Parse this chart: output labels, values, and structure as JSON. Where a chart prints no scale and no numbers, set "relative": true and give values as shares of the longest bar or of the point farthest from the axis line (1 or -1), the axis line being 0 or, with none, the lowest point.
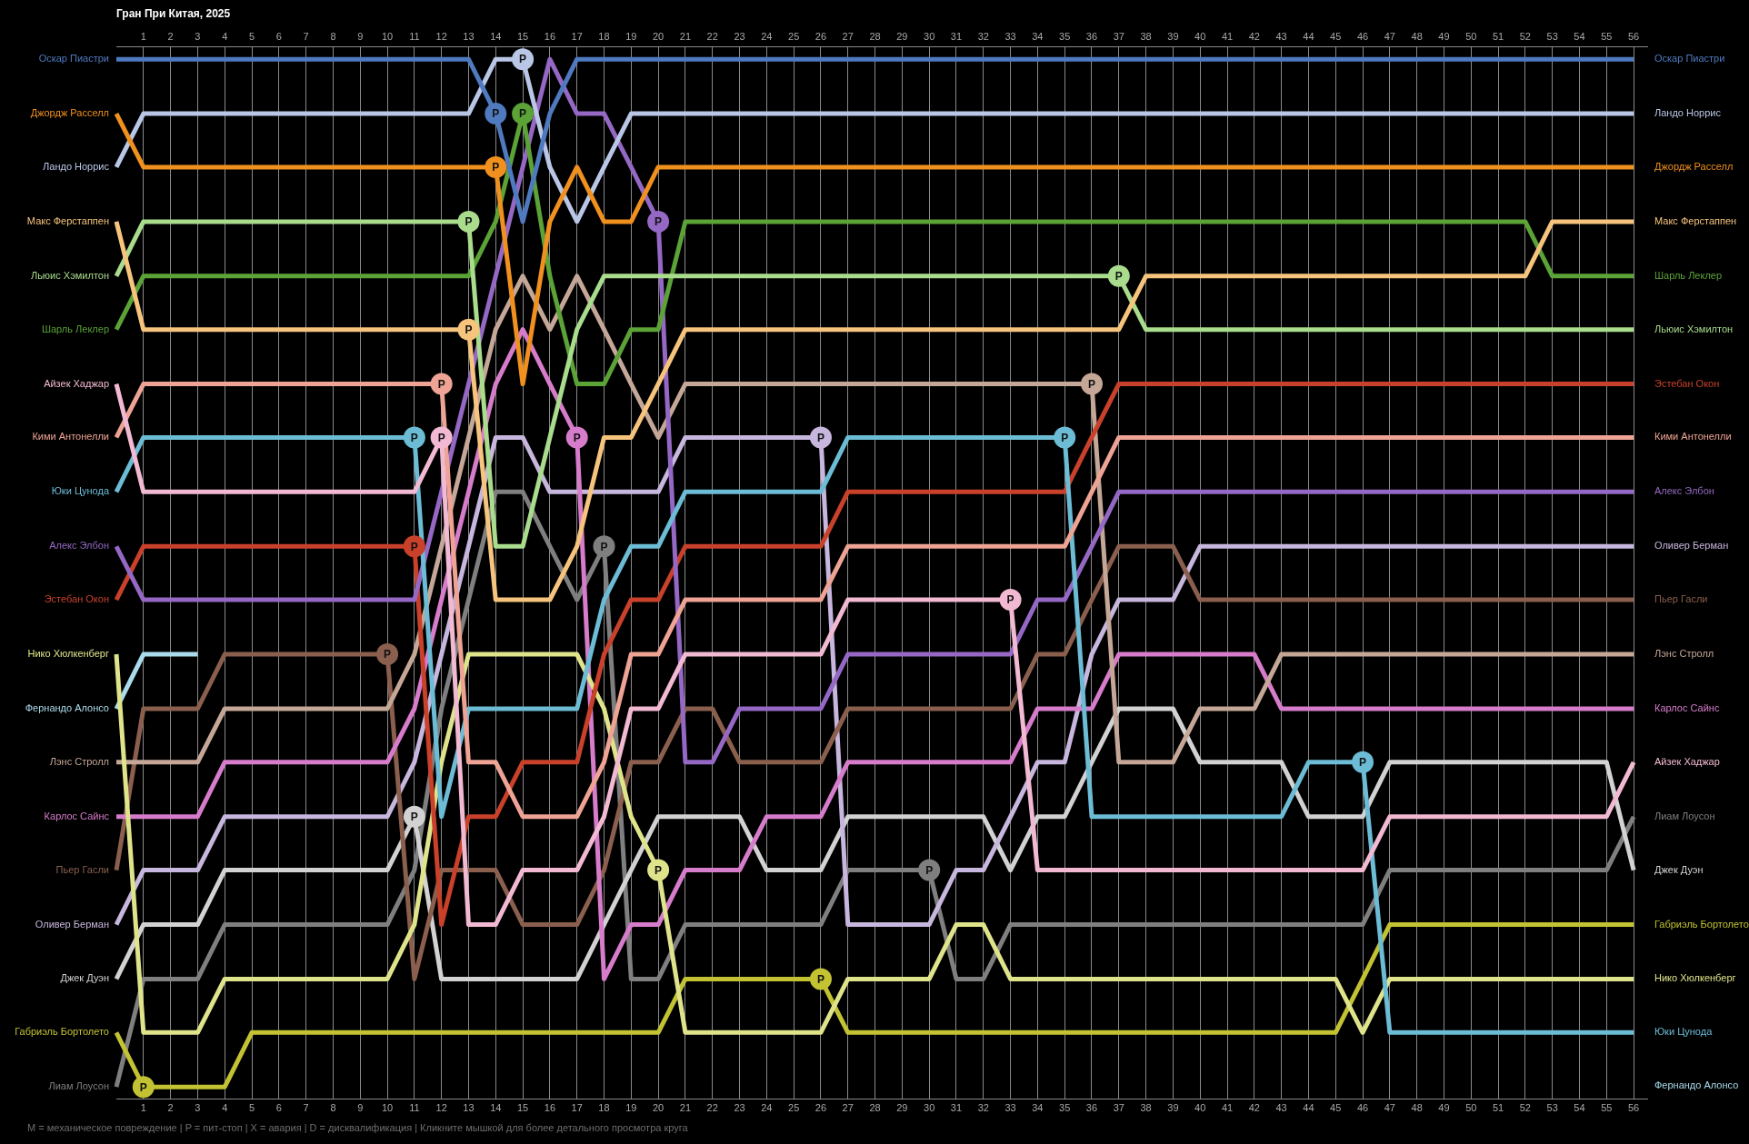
{
  "chart_data": {
    "type": "line",
    "title": "Гран При Китая, 2025",
    "relative": true,
    "x": [
      0,
      1,
      2,
      3,
      4,
      5,
      6,
      7,
      8,
      9,
      10,
      11,
      12,
      13,
      14,
      15,
      16,
      17,
      18,
      19,
      20,
      21,
      22,
      23,
      24,
      25,
      26,
      27,
      28,
      29,
      30,
      31,
      32,
      33,
      34,
      35,
      36,
      37,
      38,
      39,
      40,
      41,
      42,
      43,
      44,
      45,
      46,
      47,
      48,
      49,
      50,
      51,
      52,
      53,
      54,
      55,
      56
    ],
    "xlim": [
      0,
      56.5
    ],
    "xticks": [
      1,
      2,
      3,
      4,
      5,
      6,
      7,
      8,
      9,
      10,
      11,
      12,
      13,
      14,
      15,
      16,
      17,
      18,
      19,
      20,
      21,
      22,
      23,
      24,
      25,
      26,
      27,
      28,
      29,
      30,
      31,
      32,
      33,
      34,
      35,
      36,
      37,
      38,
      39,
      40,
      41,
      42,
      43,
      44,
      45,
      46,
      47,
      48,
      49,
      50,
      51,
      52,
      53,
      54,
      55,
      56
    ],
    "x2lim": [
      0,
      56.5
    ],
    "x2ticks": [
      1,
      2,
      3,
      4,
      5,
      6,
      7,
      8,
      9,
      10,
      11,
      12,
      13,
      14,
      15,
      16,
      17,
      18,
      19,
      20,
      21,
      22,
      23,
      24,
      25,
      26,
      27,
      28,
      29,
      30,
      31,
      32,
      33,
      34,
      35,
      36,
      37,
      38,
      39,
      40,
      41,
      42,
      43,
      44,
      45,
      46,
      47,
      48,
      49,
      50,
      51,
      52,
      53,
      54,
      55,
      56
    ],
    "grid": "x",
    "legend": false,
    "marker": "none",
    "line_style": "solid",
    "series": [
      {
        "name": "Оскар Пиастри",
        "color": "#4f7ac0",
        "values": [
          1,
          1,
          1,
          1,
          1,
          1,
          1,
          1,
          1,
          1,
          1,
          1,
          1,
          1,
          0.947,
          0.842,
          0.947,
          1,
          1,
          1,
          1,
          1,
          1,
          1,
          1,
          1,
          1,
          1,
          1,
          1,
          1,
          1,
          1,
          1,
          1,
          1,
          1,
          1,
          1,
          1,
          1,
          1,
          1,
          1,
          1,
          1,
          1,
          1,
          1,
          1,
          1,
          1,
          1,
          1,
          1,
          1,
          1
        ]
      },
      {
        "name": "Джордж Расселл",
        "color": "#f0901f",
        "values": [
          0.947,
          0.895,
          0.895,
          0.895,
          0.895,
          0.895,
          0.895,
          0.895,
          0.895,
          0.895,
          0.895,
          0.895,
          0.895,
          0.895,
          0.895,
          0.684,
          0.842,
          0.895,
          0.842,
          0.842,
          0.895,
          0.895,
          0.895,
          0.895,
          0.895,
          0.895,
          0.895,
          0.895,
          0.895,
          0.895,
          0.895,
          0.895,
          0.895,
          0.895,
          0.895,
          0.895,
          0.895,
          0.895,
          0.895,
          0.895,
          0.895,
          0.895,
          0.895,
          0.895,
          0.895,
          0.895,
          0.895,
          0.895,
          0.895,
          0.895,
          0.895,
          0.895,
          0.895,
          0.895,
          0.895,
          0.895,
          0.895
        ]
      },
      {
        "name": "Ландо Норрис",
        "color": "#b9c6e6",
        "values": [
          0.895,
          0.947,
          0.947,
          0.947,
          0.947,
          0.947,
          0.947,
          0.947,
          0.947,
          0.947,
          0.947,
          0.947,
          0.947,
          0.947,
          1,
          1,
          0.895,
          0.842,
          0.895,
          0.947,
          0.947,
          0.947,
          0.947,
          0.947,
          0.947,
          0.947,
          0.947,
          0.947,
          0.947,
          0.947,
          0.947,
          0.947,
          0.947,
          0.947,
          0.947,
          0.947,
          0.947,
          0.947,
          0.947,
          0.947,
          0.947,
          0.947,
          0.947,
          0.947,
          0.947,
          0.947,
          0.947,
          0.947,
          0.947,
          0.947,
          0.947,
          0.947,
          0.947,
          0.947,
          0.947,
          0.947,
          0.947
        ]
      },
      {
        "name": "Макс Ферстаппен",
        "color": "#f6c47d",
        "values": [
          0.842,
          0.737,
          0.737,
          0.737,
          0.737,
          0.737,
          0.737,
          0.737,
          0.737,
          0.737,
          0.737,
          0.737,
          0.737,
          0.737,
          0.474,
          0.474,
          0.474,
          0.526,
          0.632,
          0.632,
          0.684,
          0.737,
          0.737,
          0.737,
          0.737,
          0.737,
          0.737,
          0.737,
          0.737,
          0.737,
          0.737,
          0.737,
          0.737,
          0.737,
          0.737,
          0.737,
          0.737,
          0.737,
          0.789,
          0.789,
          0.789,
          0.789,
          0.789,
          0.789,
          0.789,
          0.789,
          0.789,
          0.789,
          0.789,
          0.789,
          0.789,
          0.789,
          0.789,
          0.842,
          0.842,
          0.842,
          0.842
        ]
      },
      {
        "name": "Льюис Хэмилтон",
        "color": "#a9dc8c",
        "values": [
          0.789,
          0.842,
          0.842,
          0.842,
          0.842,
          0.842,
          0.842,
          0.842,
          0.842,
          0.842,
          0.842,
          0.842,
          0.842,
          0.842,
          0.526,
          0.526,
          0.632,
          0.737,
          0.789,
          0.789,
          0.789,
          0.789,
          0.789,
          0.789,
          0.789,
          0.789,
          0.789,
          0.789,
          0.789,
          0.789,
          0.789,
          0.789,
          0.789,
          0.789,
          0.789,
          0.789,
          0.789,
          0.789,
          0.737,
          0.737,
          0.737,
          0.737,
          0.737,
          0.737,
          0.737,
          0.737,
          0.737,
          0.737,
          0.737,
          0.737,
          0.737,
          0.737,
          0.737,
          0.737,
          0.737,
          0.737,
          0.737
        ]
      },
      {
        "name": "Шарль Леклер",
        "color": "#5ba237",
        "values": [
          0.737,
          0.789,
          0.789,
          0.789,
          0.789,
          0.789,
          0.789,
          0.789,
          0.789,
          0.789,
          0.789,
          0.789,
          0.789,
          0.789,
          0.842,
          0.947,
          0.789,
          0.684,
          0.684,
          0.737,
          0.737,
          0.842,
          0.842,
          0.842,
          0.842,
          0.842,
          0.842,
          0.842,
          0.842,
          0.842,
          0.842,
          0.842,
          0.842,
          0.842,
          0.842,
          0.842,
          0.842,
          0.842,
          0.842,
          0.842,
          0.842,
          0.842,
          0.842,
          0.842,
          0.842,
          0.842,
          0.842,
          0.842,
          0.842,
          0.842,
          0.842,
          0.842,
          0.842,
          0.789,
          0.789,
          0.789,
          0.789
        ]
      },
      {
        "name": "Айзек Хаджар",
        "color": "#f2b9d2",
        "values": [
          0.684,
          0.579,
          0.579,
          0.579,
          0.579,
          0.579,
          0.579,
          0.579,
          0.579,
          0.579,
          0.579,
          0.579,
          0.632,
          0.158,
          0.158,
          0.211,
          0.211,
          0.211,
          0.263,
          0.368,
          0.368,
          0.421,
          0.421,
          0.421,
          0.421,
          0.421,
          0.421,
          0.474,
          0.474,
          0.474,
          0.474,
          0.474,
          0.474,
          0.474,
          0.211,
          0.211,
          0.211,
          0.211,
          0.211,
          0.211,
          0.211,
          0.211,
          0.211,
          0.211,
          0.211,
          0.211,
          0.211,
          0.263,
          0.263,
          0.263,
          0.263,
          0.263,
          0.263,
          0.263,
          0.263,
          0.263,
          0.316
        ]
      },
      {
        "name": "Кими Антонелли",
        "color": "#eea394",
        "values": [
          0.632,
          0.684,
          0.684,
          0.684,
          0.684,
          0.684,
          0.684,
          0.684,
          0.684,
          0.684,
          0.684,
          0.684,
          0.684,
          0.316,
          0.316,
          0.263,
          0.263,
          0.263,
          0.316,
          0.421,
          0.421,
          0.474,
          0.474,
          0.474,
          0.474,
          0.474,
          0.474,
          0.526,
          0.526,
          0.526,
          0.526,
          0.526,
          0.526,
          0.526,
          0.526,
          0.526,
          0.579,
          0.632,
          0.632,
          0.632,
          0.632,
          0.632,
          0.632,
          0.632,
          0.632,
          0.632,
          0.632,
          0.632,
          0.632,
          0.632,
          0.632,
          0.632,
          0.632,
          0.632,
          0.632,
          0.632,
          0.632
        ]
      },
      {
        "name": "Юки Цунода",
        "color": "#6cbcd6",
        "values": [
          0.579,
          0.632,
          0.632,
          0.632,
          0.632,
          0.632,
          0.632,
          0.632,
          0.632,
          0.632,
          0.632,
          0.632,
          0.263,
          0.368,
          0.368,
          0.368,
          0.368,
          0.368,
          0.474,
          0.526,
          0.526,
          0.579,
          0.579,
          0.579,
          0.579,
          0.579,
          0.579,
          0.632,
          0.632,
          0.632,
          0.632,
          0.632,
          0.632,
          0.632,
          0.632,
          0.632,
          0.263,
          0.263,
          0.263,
          0.263,
          0.263,
          0.263,
          0.263,
          0.263,
          0.316,
          0.316,
          0.316,
          0.053,
          0.053,
          0.053,
          0.053,
          0.053,
          0.053,
          0.053,
          0.053,
          0.053,
          0.053
        ]
      },
      {
        "name": "Алекс Элбон",
        "color": "#9468c4",
        "values": [
          0.526,
          0.474,
          0.474,
          0.474,
          0.474,
          0.474,
          0.474,
          0.474,
          0.474,
          0.474,
          0.474,
          0.474,
          0.579,
          0.684,
          0.789,
          0.895,
          1,
          0.947,
          0.947,
          0.895,
          0.842,
          0.316,
          0.316,
          0.368,
          0.368,
          0.368,
          0.368,
          0.421,
          0.421,
          0.421,
          0.421,
          0.421,
          0.421,
          0.421,
          0.474,
          0.474,
          0.526,
          0.579,
          0.579,
          0.579,
          0.579,
          0.579,
          0.579,
          0.579,
          0.579,
          0.579,
          0.579,
          0.579,
          0.579,
          0.579,
          0.579,
          0.579,
          0.579,
          0.579,
          0.579,
          0.579,
          0.579
        ]
      },
      {
        "name": "Эстебан Окон",
        "color": "#c9412b",
        "values": [
          0.474,
          0.526,
          0.526,
          0.526,
          0.526,
          0.526,
          0.526,
          0.526,
          0.526,
          0.526,
          0.526,
          0.526,
          0.158,
          0.263,
          0.263,
          0.316,
          0.316,
          0.316,
          0.421,
          0.474,
          0.474,
          0.526,
          0.526,
          0.526,
          0.526,
          0.526,
          0.526,
          0.579,
          0.579,
          0.579,
          0.579,
          0.579,
          0.579,
          0.579,
          0.579,
          0.579,
          0.632,
          0.684,
          0.684,
          0.684,
          0.684,
          0.684,
          0.684,
          0.684,
          0.684,
          0.684,
          0.684,
          0.684,
          0.684,
          0.684,
          0.684,
          0.684,
          0.684,
          0.684,
          0.684,
          0.684,
          0.684
        ]
      },
      {
        "name": "Нико Хюлкенберг",
        "color": "#dfe48b",
        "values": [
          0.421,
          0.053,
          0.053,
          0.053,
          0.105,
          0.105,
          0.105,
          0.105,
          0.105,
          0.105,
          0.105,
          0.158,
          0.316,
          0.421,
          0.421,
          0.421,
          0.421,
          0.421,
          0.368,
          0.263,
          0.211,
          0.053,
          0.053,
          0.053,
          0.053,
          0.053,
          0.053,
          0.105,
          0.105,
          0.105,
          0.105,
          0.158,
          0.158,
          0.105,
          0.105,
          0.105,
          0.105,
          0.105,
          0.105,
          0.105,
          0.105,
          0.105,
          0.105,
          0.105,
          0.105,
          0.105,
          0.053,
          0.105,
          0.105,
          0.105,
          0.105,
          0.105,
          0.105,
          0.105,
          0.105,
          0.105,
          0.105
        ]
      },
      {
        "name": "Фернандо Алонсо",
        "color": "#aadbec",
        "values": [
          0.368,
          0.421,
          0.421,
          0.421,
          null,
          null,
          null,
          null,
          null,
          null,
          null,
          null,
          null,
          null,
          null,
          null,
          null,
          null,
          null,
          null,
          null,
          null,
          null,
          null,
          null,
          null,
          null,
          null,
          null,
          null,
          null,
          null,
          null,
          null,
          null,
          null,
          null,
          null,
          null,
          null,
          null,
          null,
          null,
          null,
          null,
          null,
          null,
          null,
          null,
          null,
          null,
          null,
          null,
          null,
          null,
          null,
          null
        ]
      },
      {
        "name": "Лэнс Стролл",
        "color": "#c5a797",
        "values": [
          0.316,
          0.316,
          0.316,
          0.316,
          0.368,
          0.368,
          0.368,
          0.368,
          0.368,
          0.368,
          0.368,
          0.421,
          0.526,
          0.632,
          0.737,
          0.789,
          0.737,
          0.789,
          0.737,
          0.684,
          0.632,
          0.684,
          0.684,
          0.684,
          0.684,
          0.684,
          0.684,
          0.684,
          0.684,
          0.684,
          0.684,
          0.684,
          0.684,
          0.684,
          0.684,
          0.684,
          0.684,
          0.316,
          0.316,
          0.316,
          0.368,
          0.368,
          0.368,
          0.421,
          0.421,
          0.421,
          0.421,
          0.421,
          0.421,
          0.421,
          0.421,
          0.421,
          0.421,
          0.421,
          0.421,
          0.421,
          0.421
        ]
      },
      {
        "name": "Карлос Сайнс",
        "color": "#d77ccb",
        "values": [
          0.263,
          0.263,
          0.263,
          0.263,
          0.316,
          0.316,
          0.316,
          0.316,
          0.316,
          0.316,
          0.316,
          0.368,
          0.474,
          0.579,
          0.684,
          0.737,
          0.684,
          0.632,
          0.105,
          0.158,
          0.158,
          0.211,
          0.211,
          0.211,
          0.263,
          0.263,
          0.263,
          0.316,
          0.316,
          0.316,
          0.316,
          0.316,
          0.316,
          0.316,
          0.368,
          0.368,
          0.368,
          0.421,
          0.421,
          0.421,
          0.421,
          0.421,
          0.421,
          0.368,
          0.368,
          0.368,
          0.368,
          0.368,
          0.368,
          0.368,
          0.368,
          0.368,
          0.368,
          0.368,
          0.368,
          0.368,
          0.368
        ]
      },
      {
        "name": "Пьер Гасли",
        "color": "#8a5f4d",
        "values": [
          0.211,
          0.368,
          0.368,
          0.368,
          0.421,
          0.421,
          0.421,
          0.421,
          0.421,
          0.421,
          0.421,
          0.105,
          0.211,
          0.211,
          0.211,
          0.158,
          0.158,
          0.158,
          0.211,
          0.316,
          0.316,
          0.368,
          0.368,
          0.316,
          0.316,
          0.316,
          0.316,
          0.368,
          0.368,
          0.368,
          0.368,
          0.368,
          0.368,
          0.368,
          0.421,
          0.421,
          0.474,
          0.526,
          0.526,
          0.526,
          0.474,
          0.474,
          0.474,
          0.474,
          0.474,
          0.474,
          0.474,
          0.474,
          0.474,
          0.474,
          0.474,
          0.474,
          0.474,
          0.474,
          0.474,
          0.474,
          0.474
        ]
      },
      {
        "name": "Оливер Берман",
        "color": "#c7b6dd",
        "values": [
          0.158,
          0.211,
          0.211,
          0.211,
          0.263,
          0.263,
          0.263,
          0.263,
          0.263,
          0.263,
          0.263,
          0.316,
          0.421,
          0.526,
          0.632,
          0.632,
          0.579,
          0.579,
          0.579,
          0.579,
          0.579,
          0.632,
          0.632,
          0.632,
          0.632,
          0.632,
          0.632,
          0.158,
          0.158,
          0.158,
          0.158,
          0.211,
          0.211,
          0.263,
          0.316,
          0.316,
          0.421,
          0.474,
          0.474,
          0.474,
          0.526,
          0.526,
          0.526,
          0.526,
          0.526,
          0.526,
          0.526,
          0.526,
          0.526,
          0.526,
          0.526,
          0.526,
          0.526,
          0.526,
          0.526,
          0.526,
          0.526
        ]
      },
      {
        "name": "Джек Дуэн",
        "color": "#d2d2d2",
        "values": [
          0.105,
          0.158,
          0.158,
          0.158,
          0.211,
          0.211,
          0.211,
          0.211,
          0.211,
          0.211,
          0.211,
          0.263,
          0.105,
          0.105,
          0.105,
          0.105,
          0.105,
          0.105,
          0.158,
          0.211,
          0.263,
          0.263,
          0.263,
          0.263,
          0.211,
          0.211,
          0.211,
          0.263,
          0.263,
          0.263,
          0.263,
          0.263,
          0.263,
          0.211,
          0.263,
          0.263,
          0.316,
          0.368,
          0.368,
          0.368,
          0.316,
          0.316,
          0.316,
          0.316,
          0.263,
          0.263,
          0.263,
          0.316,
          0.316,
          0.316,
          0.316,
          0.316,
          0.316,
          0.316,
          0.316,
          0.316,
          0.211
        ]
      },
      {
        "name": "Габриэль Бортолето",
        "color": "#c2c232",
        "values": [
          0.053,
          0,
          0,
          0,
          0,
          0.053,
          0.053,
          0.053,
          0.053,
          0.053,
          0.053,
          0.053,
          0.053,
          0.053,
          0.053,
          0.053,
          0.053,
          0.053,
          0.053,
          0.053,
          0.053,
          0.105,
          0.105,
          0.105,
          0.105,
          0.105,
          0.105,
          0.053,
          0.053,
          0.053,
          0.053,
          0.053,
          0.053,
          0.053,
          0.053,
          0.053,
          0.053,
          0.053,
          0.053,
          0.053,
          0.053,
          0.053,
          0.053,
          0.053,
          0.053,
          0.053,
          0.105,
          0.158,
          0.158,
          0.158,
          0.158,
          0.158,
          0.158,
          0.158,
          0.158,
          0.158,
          0.158
        ]
      },
      {
        "name": "Лиам Лоусон",
        "color": "#7f7f7f",
        "values": [
          0,
          0.105,
          0.105,
          0.105,
          0.158,
          0.158,
          0.158,
          0.158,
          0.158,
          0.158,
          0.158,
          0.211,
          0.368,
          0.474,
          0.579,
          0.579,
          0.526,
          0.474,
          0.526,
          0.105,
          0.105,
          0.158,
          0.158,
          0.158,
          0.158,
          0.158,
          0.158,
          0.211,
          0.211,
          0.211,
          0.211,
          0.105,
          0.105,
          0.158,
          0.158,
          0.158,
          0.158,
          0.158,
          0.158,
          0.158,
          0.158,
          0.158,
          0.158,
          0.158,
          0.158,
          0.158,
          0.158,
          0.211,
          0.211,
          0.211,
          0.211,
          0.211,
          0.211,
          0.211,
          0.211,
          0.211,
          0.263
        ]
      }
    ],
    "annotations": [
      {
        "text": "P",
        "x": 1,
        "y": 0
      },
      {
        "text": "P",
        "x": 10,
        "y": 0.421
      },
      {
        "text": "P",
        "x": 11,
        "y": 0.632
      },
      {
        "text": "P",
        "x": 11,
        "y": 0.526
      },
      {
        "text": "P",
        "x": 11,
        "y": 0.263
      },
      {
        "text": "P",
        "x": 12,
        "y": 0.684
      },
      {
        "text": "P",
        "x": 12,
        "y": 0.632
      },
      {
        "text": "P",
        "x": 13,
        "y": 0.842
      },
      {
        "text": "P",
        "x": 13,
        "y": 0.737
      },
      {
        "text": "P",
        "x": 14,
        "y": 0.947
      },
      {
        "text": "P",
        "x": 14,
        "y": 0.895
      },
      {
        "text": "P",
        "x": 15,
        "y": 1
      },
      {
        "text": "P",
        "x": 15,
        "y": 0.947
      },
      {
        "text": "P",
        "x": 17,
        "y": 0.632
      },
      {
        "text": "P",
        "x": 18,
        "y": 0.526
      },
      {
        "text": "P",
        "x": 20,
        "y": 0.842
      },
      {
        "text": "P",
        "x": 20,
        "y": 0.211
      },
      {
        "text": "P",
        "x": 26,
        "y": 0.632
      },
      {
        "text": "P",
        "x": 26,
        "y": 0.105
      },
      {
        "text": "P",
        "x": 30,
        "y": 0.211
      },
      {
        "text": "P",
        "x": 33,
        "y": 0.474
      },
      {
        "text": "P",
        "x": 35,
        "y": 0.632
      },
      {
        "text": "P",
        "x": 36,
        "y": 0.684
      },
      {
        "text": "P",
        "x": 37,
        "y": 0.789
      },
      {
        "text": "P",
        "x": 46,
        "y": 0.316
      },
      {
        "text": "Оскар Пиастри",
        "x": 56,
        "y": 1
      },
      {
        "text": "Ландо Норрис",
        "x": 56,
        "y": 0.947
      },
      {
        "text": "Джордж Расселл",
        "x": 56,
        "y": 0.895
      },
      {
        "text": "Макс Ферстаппен",
        "x": 56,
        "y": 0.842
      },
      {
        "text": "Шарль Леклер",
        "x": 56,
        "y": 0.789
      },
      {
        "text": "Льюис Хэмилтон",
        "x": 56,
        "y": 0.737
      },
      {
        "text": "Эстебан Окон",
        "x": 56,
        "y": 0.684
      },
      {
        "text": "Кими Антонелли",
        "x": 56,
        "y": 0.632
      },
      {
        "text": "Алекс Элбон",
        "x": 56,
        "y": 0.579
      },
      {
        "text": "Оливер Берман",
        "x": 56,
        "y": 0.526
      },
      {
        "text": "Пьер Гасли",
        "x": 56,
        "y": 0.474
      },
      {
        "text": "Лэнс Стролл",
        "x": 56,
        "y": 0.421
      },
      {
        "text": "Карлос Сайнс",
        "x": 56,
        "y": 0.368
      },
      {
        "text": "Айзек Хаджар",
        "x": 56,
        "y": 0.316
      },
      {
        "text": "Лиам Лоусон",
        "x": 56,
        "y": 0.263
      },
      {
        "text": "Джек Дуэн",
        "x": 56,
        "y": 0.211
      },
      {
        "text": "Габриэль Бортолето",
        "x": 56,
        "y": 0.158
      },
      {
        "text": "Нико Хюлкенберг",
        "x": 56,
        "y": 0.105
      },
      {
        "text": "Юки Цунода",
        "x": 56,
        "y": 0.053
      },
      "Фернандо Алонсо",
      "M = механическое повреждение | P = пит-стоп | X = авария | D = дисквалификация | Кликните мышкой для более детального просмотра круга"
    ]
  }
}
